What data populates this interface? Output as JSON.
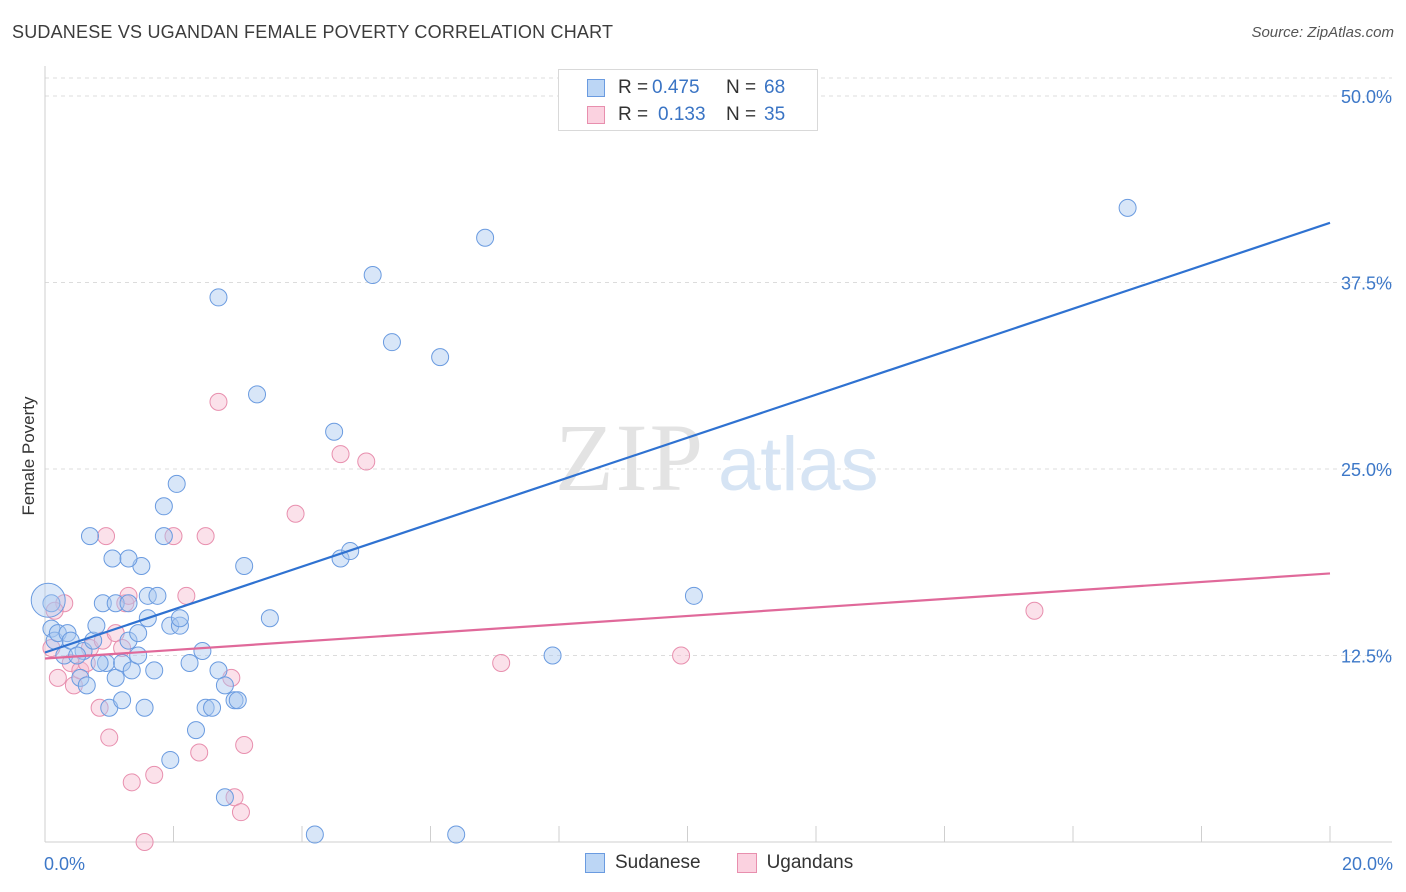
{
  "header": {
    "title": "SUDANESE VS UGANDAN FEMALE POVERTY CORRELATION CHART",
    "source": "Source: ZipAtlas.com"
  },
  "watermark": {
    "part1": "ZIP",
    "part2": "atlas"
  },
  "colors": {
    "sudanese_fill": "#a9c8f0",
    "sudanese_stroke": "#6a9be0",
    "sudanese_line": "#2f72d1",
    "ugandans_fill": "#f7bcd0",
    "ugandans_stroke": "#e88fae",
    "ugandans_line": "#e0699a",
    "tick": "#3d78c8",
    "grid": "#dcdcdc"
  },
  "legend": {
    "rows": [
      {
        "r_label": "R =",
        "r_value": "0.475",
        "n_label": "N =",
        "n_value": "68"
      },
      {
        "r_label": "R =",
        "r_value": "0.133",
        "n_label": "N =",
        "n_value": "35"
      }
    ]
  },
  "bottom_legend": [
    "Sudanese",
    "Ugandans"
  ],
  "chart_data": {
    "type": "scatter",
    "ylabel": "Female Poverty",
    "xlim": [
      0,
      20
    ],
    "ylim": [
      0,
      50
    ],
    "x_tick_labels": [
      "0.0%",
      "20.0%"
    ],
    "y_ticks": [
      12.5,
      25.0,
      37.5,
      50.0
    ],
    "y_tick_labels": [
      "12.5%",
      "25.0%",
      "37.5%",
      "50.0%"
    ],
    "grid": true,
    "series": [
      {
        "name": "Sudanese",
        "trend": [
          [
            0,
            12.7
          ],
          [
            20,
            41.5
          ]
        ],
        "points": [
          [
            0.1,
            16.0
          ],
          [
            0.1,
            14.3
          ],
          [
            0.15,
            13.5
          ],
          [
            0.2,
            14.0
          ],
          [
            0.3,
            12.5
          ],
          [
            0.35,
            14.0
          ],
          [
            0.4,
            13.5
          ],
          [
            0.55,
            11.0
          ],
          [
            0.65,
            10.5
          ],
          [
            0.6,
            12.8
          ],
          [
            0.75,
            13.5
          ],
          [
            0.8,
            14.5
          ],
          [
            0.95,
            12.0
          ],
          [
            1.0,
            9.0
          ],
          [
            0.9,
            16.0
          ],
          [
            1.05,
            19.0
          ],
          [
            1.1,
            16.0
          ],
          [
            1.1,
            11.0
          ],
          [
            1.2,
            12.0
          ],
          [
            1.2,
            9.5
          ],
          [
            1.35,
            11.5
          ],
          [
            1.3,
            13.5
          ],
          [
            1.3,
            16.0
          ],
          [
            1.45,
            14.0
          ],
          [
            1.45,
            12.5
          ],
          [
            1.5,
            18.5
          ],
          [
            1.55,
            9.0
          ],
          [
            1.6,
            15.0
          ],
          [
            1.6,
            16.5
          ],
          [
            1.7,
            11.5
          ],
          [
            1.75,
            16.5
          ],
          [
            1.85,
            20.5
          ],
          [
            1.85,
            22.5
          ],
          [
            1.95,
            14.5
          ],
          [
            2.05,
            24.0
          ],
          [
            2.1,
            14.5
          ],
          [
            2.1,
            15.0
          ],
          [
            2.25,
            12.0
          ],
          [
            2.35,
            7.5
          ],
          [
            2.45,
            12.8
          ],
          [
            2.5,
            9.0
          ],
          [
            2.6,
            9.0
          ],
          [
            2.7,
            11.5
          ],
          [
            2.8,
            3.0
          ],
          [
            2.8,
            10.5
          ],
          [
            2.95,
            9.5
          ],
          [
            3.0,
            9.5
          ],
          [
            3.1,
            18.5
          ],
          [
            3.3,
            30.0
          ],
          [
            3.5,
            15.0
          ],
          [
            4.2,
            0.5
          ],
          [
            4.5,
            27.5
          ],
          [
            4.6,
            19.0
          ],
          [
            4.75,
            19.5
          ],
          [
            5.1,
            38.0
          ],
          [
            5.4,
            33.5
          ],
          [
            6.15,
            32.5
          ],
          [
            6.4,
            0.5
          ],
          [
            6.85,
            40.5
          ],
          [
            7.9,
            12.5
          ],
          [
            10.1,
            16.5
          ],
          [
            16.85,
            42.5
          ],
          [
            1.95,
            5.5
          ],
          [
            2.7,
            36.5
          ],
          [
            0.7,
            20.5
          ],
          [
            0.85,
            12.0
          ],
          [
            0.5,
            12.5
          ],
          [
            1.3,
            19.0
          ]
        ]
      },
      {
        "name": "Ugandans",
        "trend": [
          [
            0,
            12.3
          ],
          [
            20,
            18.0
          ]
        ],
        "points": [
          [
            0.1,
            13.0
          ],
          [
            0.2,
            11.0
          ],
          [
            0.3,
            16.0
          ],
          [
            0.4,
            12.0
          ],
          [
            0.45,
            10.5
          ],
          [
            0.55,
            11.5
          ],
          [
            0.65,
            12.0
          ],
          [
            0.7,
            13.0
          ],
          [
            0.85,
            9.0
          ],
          [
            0.9,
            13.5
          ],
          [
            0.95,
            20.5
          ],
          [
            1.0,
            7.0
          ],
          [
            1.1,
            14.0
          ],
          [
            1.2,
            13.0
          ],
          [
            1.25,
            16.0
          ],
          [
            1.3,
            16.5
          ],
          [
            1.35,
            4.0
          ],
          [
            1.55,
            0.0
          ],
          [
            1.7,
            4.5
          ],
          [
            2.0,
            20.5
          ],
          [
            2.2,
            16.5
          ],
          [
            2.4,
            6.0
          ],
          [
            2.5,
            20.5
          ],
          [
            2.7,
            29.5
          ],
          [
            2.9,
            11.0
          ],
          [
            2.95,
            3.0
          ],
          [
            3.05,
            2.0
          ],
          [
            3.1,
            6.5
          ],
          [
            3.9,
            22.0
          ],
          [
            4.6,
            26.0
          ],
          [
            5.0,
            25.5
          ],
          [
            7.1,
            12.0
          ],
          [
            9.9,
            12.5
          ],
          [
            15.4,
            15.5
          ],
          [
            0.15,
            15.5
          ]
        ]
      }
    ]
  }
}
